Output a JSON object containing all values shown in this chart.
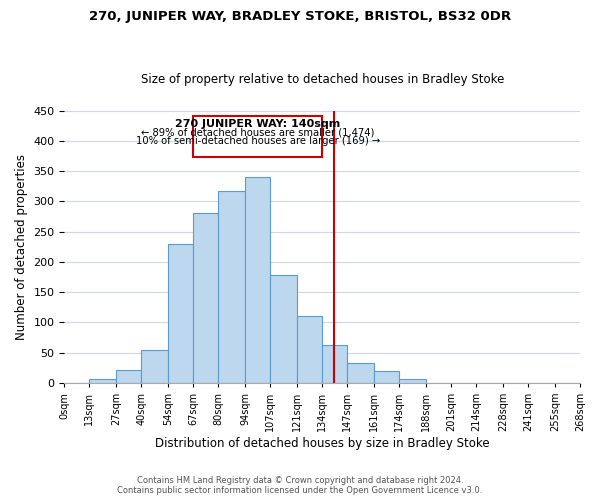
{
  "title1": "270, JUNIPER WAY, BRADLEY STOKE, BRISTOL, BS32 0DR",
  "title2": "Size of property relative to detached houses in Bradley Stoke",
  "xlabel": "Distribution of detached houses by size in Bradley Stoke",
  "ylabel": "Number of detached properties",
  "bin_labels": [
    "0sqm",
    "13sqm",
    "27sqm",
    "40sqm",
    "54sqm",
    "67sqm",
    "80sqm",
    "94sqm",
    "107sqm",
    "121sqm",
    "134sqm",
    "147sqm",
    "161sqm",
    "174sqm",
    "188sqm",
    "201sqm",
    "214sqm",
    "228sqm",
    "241sqm",
    "255sqm",
    "268sqm"
  ],
  "bar_values": [
    0,
    7,
    22,
    55,
    230,
    281,
    317,
    340,
    178,
    110,
    62,
    33,
    19,
    7,
    0,
    0,
    0,
    0,
    0,
    0
  ],
  "bar_left_edges": [
    0,
    13,
    27,
    40,
    54,
    67,
    80,
    94,
    107,
    121,
    134,
    147,
    161,
    174,
    188,
    201,
    214,
    228,
    241,
    255
  ],
  "bar_widths": [
    13,
    14,
    13,
    14,
    13,
    13,
    14,
    13,
    14,
    13,
    13,
    14,
    13,
    14,
    13,
    13,
    14,
    13,
    14,
    13
  ],
  "bar_color": "#bdd7ee",
  "bar_edgecolor": "#5b9bd5",
  "vline_x": 140,
  "vline_color": "#cc0000",
  "annotation_title": "270 JUNIPER WAY: 140sqm",
  "annotation_line1": "← 89% of detached houses are smaller (1,474)",
  "annotation_line2": "10% of semi-detached houses are larger (169) →",
  "annotation_box_edgecolor": "#cc0000",
  "ylim": [
    0,
    450
  ],
  "yticks": [
    0,
    50,
    100,
    150,
    200,
    250,
    300,
    350,
    400,
    450
  ],
  "footer1": "Contains HM Land Registry data © Crown copyright and database right 2024.",
  "footer2": "Contains public sector information licensed under the Open Government Licence v3.0.",
  "bg_color": "#ffffff",
  "grid_color": "#d0d8e8"
}
